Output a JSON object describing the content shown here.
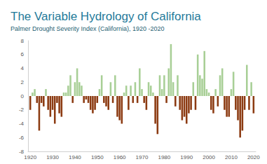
{
  "chart_data": {
    "type": "bar",
    "title": "The Variable Hydrology of California",
    "subtitle": "Palmer Drought Severity Index (California), 1920 -2020",
    "x": [
      1920,
      1921,
      1922,
      1923,
      1924,
      1925,
      1926,
      1927,
      1928,
      1929,
      1930,
      1931,
      1932,
      1933,
      1934,
      1935,
      1936,
      1937,
      1938,
      1939,
      1940,
      1941,
      1942,
      1943,
      1944,
      1945,
      1946,
      1947,
      1948,
      1949,
      1950,
      1951,
      1952,
      1953,
      1954,
      1955,
      1956,
      1957,
      1958,
      1959,
      1960,
      1961,
      1962,
      1963,
      1964,
      1965,
      1966,
      1967,
      1968,
      1969,
      1970,
      1971,
      1972,
      1973,
      1974,
      1975,
      1976,
      1977,
      1978,
      1979,
      1980,
      1981,
      1982,
      1983,
      1984,
      1985,
      1986,
      1987,
      1988,
      1989,
      1990,
      1991,
      1992,
      1993,
      1994,
      1995,
      1996,
      1997,
      1998,
      1999,
      2000,
      2001,
      2002,
      2003,
      2004,
      2005,
      2006,
      2007,
      2008,
      2009,
      2010,
      2011,
      2012,
      2013,
      2014,
      2015,
      2016,
      2017,
      2018,
      2019,
      2020
    ],
    "values": [
      -2,
      0.5,
      1,
      -1,
      -5,
      -1,
      -1.5,
      1,
      -2,
      -3,
      -2,
      -4,
      -1,
      -2.5,
      -3,
      0.5,
      0.5,
      1.5,
      3,
      -1,
      2,
      4,
      2,
      1.5,
      -1,
      -0.5,
      -1,
      -2,
      -2.5,
      -2,
      -1,
      1,
      3,
      -1,
      -1.5,
      -2,
      2,
      -1,
      3,
      -3,
      -3.5,
      -4,
      0.5,
      1.5,
      -2,
      1.5,
      -1,
      2,
      -1,
      4,
      1,
      -1,
      -2,
      2,
      1.5,
      0.5,
      -4,
      -5.5,
      3,
      1,
      3,
      -1,
      4,
      7.5,
      2,
      -1.5,
      3,
      -2,
      -3.5,
      -3,
      -4,
      -2.5,
      -2,
      2,
      -2,
      6,
      3,
      2.5,
      6.5,
      1,
      0.5,
      -2,
      -2.5,
      1,
      -1.5,
      3,
      4,
      -2,
      -3,
      -3,
      1,
      3.5,
      -2,
      -3.5,
      -6,
      -5,
      -2,
      4.5,
      -2,
      2,
      -2.5
    ],
    "colors": [
      "#8c3b12",
      "#a8cf96",
      "#a8cf96",
      "#8c3b12",
      "#8c3b12",
      "#8c3b12",
      "#8c3b12",
      "#a8cf96",
      "#8c3b12",
      "#8c3b12",
      "#8c3b12",
      "#8c3b12",
      "#8c3b12",
      "#8c3b12",
      "#8c3b12",
      "#a8cf96",
      "#a8cf96",
      "#a8cf96",
      "#a8cf96",
      "#8c3b12",
      "#a8cf96",
      "#a8cf96",
      "#a8cf96",
      "#a8cf96",
      "#8c3b12",
      "#8c3b12",
      "#8c3b12",
      "#8c3b12",
      "#8c3b12",
      "#8c3b12",
      "#8c3b12",
      "#a8cf96",
      "#a8cf96",
      "#8c3b12",
      "#8c3b12",
      "#8c3b12",
      "#a8cf96",
      "#8c3b12",
      "#a8cf96",
      "#8c3b12",
      "#8c3b12",
      "#8c3b12",
      "#a8cf96",
      "#a8cf96",
      "#8c3b12",
      "#a8cf96",
      "#8c3b12",
      "#a8cf96",
      "#8c3b12",
      "#a8cf96",
      "#a8cf96",
      "#8c3b12",
      "#8c3b12",
      "#a8cf96",
      "#a8cf96",
      "#a8cf96",
      "#8c3b12",
      "#8c3b12",
      "#a8cf96",
      "#a8cf96",
      "#a8cf96",
      "#8c3b12",
      "#a8cf96",
      "#a8cf96",
      "#a8cf96",
      "#8c3b12",
      "#a8cf96",
      "#8c3b12",
      "#8c3b12",
      "#8c3b12",
      "#8c3b12",
      "#8c3b12",
      "#8c3b12",
      "#a8cf96",
      "#8c3b12",
      "#a8cf96",
      "#a8cf96",
      "#a8cf96",
      "#a8cf96",
      "#a8cf96",
      "#a8cf96",
      "#8c3b12",
      "#8c3b12",
      "#a8cf96",
      "#8c3b12",
      "#a8cf96",
      "#a8cf96",
      "#8c3b12",
      "#8c3b12",
      "#8c3b12",
      "#a8cf96",
      "#a8cf96",
      "#8c3b12",
      "#8c3b12",
      "#8c3b12",
      "#8c3b12",
      "#8c3b12",
      "#a8cf96",
      "#8c3b12",
      "#a8cf96",
      "#8c3b12"
    ],
    "xlim": [
      1919,
      2021
    ],
    "xticks": [
      1920,
      1930,
      1940,
      1950,
      1960,
      1970,
      1980,
      1990,
      2000,
      2010,
      2020
    ],
    "ylim": [
      -8,
      8
    ],
    "yticks": [
      -8,
      -6,
      -4,
      -2,
      0,
      2,
      4,
      6,
      8
    ],
    "grid": false
  }
}
